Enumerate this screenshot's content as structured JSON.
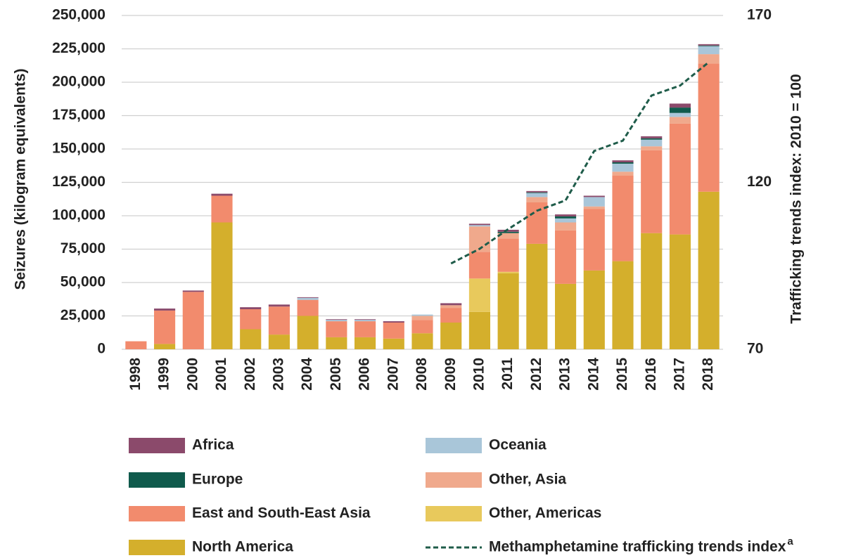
{
  "chart_data": {
    "type": "bar",
    "stacked": true,
    "y_label": "Seizures (kilogram equivalents)",
    "y2_label": "Trafficking trends index: 2010 = 100",
    "categories": [
      "1998",
      "1999",
      "2000",
      "2001",
      "2002",
      "2003",
      "2004",
      "2005",
      "2006",
      "2007",
      "2008",
      "2009",
      "2010",
      "2011",
      "2012",
      "2013",
      "2014",
      "2015",
      "2016",
      "2017",
      "2018"
    ],
    "ylim": [
      0,
      250000
    ],
    "yticks": [
      0,
      {
        "value": 25000,
        "label": "25,000"
      },
      {
        "value": 50000,
        "label": "50,000"
      },
      {
        "value": 75000,
        "label": "75,000"
      },
      {
        "value": 100000,
        "label": "100,000"
      },
      {
        "value": 125000,
        "label": "125,000"
      },
      {
        "value": 150000,
        "label": "150,000"
      },
      {
        "value": 175000,
        "label": "175,000"
      },
      {
        "value": 200000,
        "label": "200,000"
      },
      {
        "value": 225000,
        "label": "225,000"
      },
      {
        "value": 250000,
        "label": "250,000"
      }
    ],
    "y2lim": [
      70,
      170
    ],
    "y2ticks": [
      70,
      120,
      170
    ],
    "grid": true,
    "series": [
      {
        "name": "North America",
        "color": "#d4af2c",
        "values": [
          0,
          4000,
          0,
          95000,
          15000,
          11000,
          25000,
          9000,
          9000,
          8000,
          12000,
          20000,
          28000,
          57000,
          79000,
          49000,
          59000,
          66000,
          87000,
          86000,
          118000
        ]
      },
      {
        "name": "Other, Americas",
        "color": "#e8c95c",
        "values": [
          0,
          0,
          0,
          0,
          0,
          0,
          0,
          0,
          0,
          0,
          0,
          0,
          25000,
          1000,
          0,
          0,
          0,
          0,
          0,
          0,
          0
        ]
      },
      {
        "name": "East and South-East Asia",
        "color": "#f28b6d",
        "values": [
          6000,
          25000,
          43000,
          20000,
          15000,
          21000,
          12000,
          12000,
          12000,
          12000,
          10000,
          11000,
          20000,
          25000,
          31000,
          40000,
          46000,
          64000,
          62000,
          83000,
          96000
        ]
      },
      {
        "name": "Other, Asia",
        "color": "#f0a98c",
        "values": [
          0,
          0,
          0,
          0,
          0,
          0,
          0,
          0,
          0,
          0,
          3000,
          2000,
          19000,
          4000,
          4000,
          6000,
          2000,
          3000,
          3000,
          5000,
          7000
        ]
      },
      {
        "name": "Oceania",
        "color": "#a9c6d9",
        "values": [
          0,
          0,
          0,
          0,
          0,
          0,
          1500,
          1000,
          1000,
          0,
          1000,
          0,
          1000,
          0,
          3000,
          3000,
          7000,
          6000,
          5000,
          3000,
          6000
        ]
      },
      {
        "name": "Europe",
        "color": "#0f5a4c",
        "values": [
          0,
          0,
          0,
          0,
          0,
          0,
          0,
          0,
          0,
          0,
          0,
          0,
          0,
          1000,
          500,
          1500,
          0,
          1000,
          1000,
          4000,
          500
        ]
      },
      {
        "name": "Africa",
        "color": "#8b4a6b",
        "values": [
          0,
          1500,
          1000,
          1500,
          1500,
          1500,
          500,
          500,
          500,
          1000,
          0,
          1500,
          1000,
          1500,
          1000,
          1500,
          1000,
          1500,
          1500,
          3000,
          1000
        ]
      },
      {
        "name": "Methamphetamine trafficking trends index",
        "note": "a",
        "type": "line",
        "axis": "y2",
        "dashed": true,
        "color": "#1f5c4a",
        "values": [
          null,
          null,
          null,
          null,
          null,
          null,
          null,
          null,
          null,
          null,
          null,
          95.7,
          100.1,
          106,
          111.5,
          114.6,
          129.4,
          132.5,
          146,
          149,
          156
        ]
      }
    ]
  }
}
